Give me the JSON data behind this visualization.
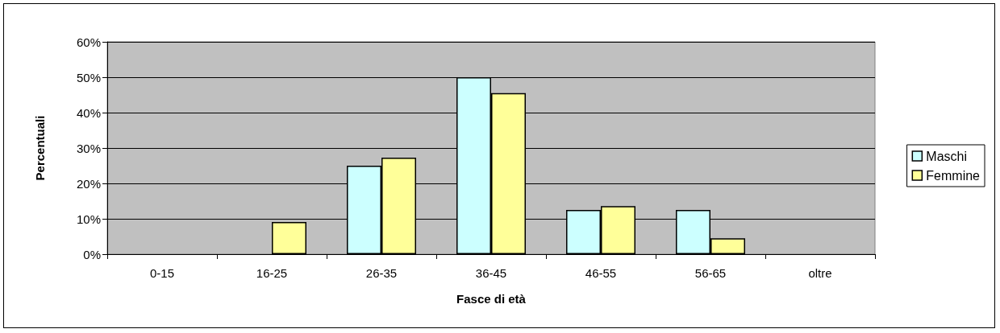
{
  "chart_data": {
    "type": "bar",
    "xlabel": "Fasce di età",
    "ylabel": "Percentuali",
    "categories": [
      "0-15",
      "16-25",
      "26-35",
      "36-45",
      "46-55",
      "56-65",
      "oltre"
    ],
    "series": [
      {
        "name": "Maschi",
        "color": "#ccffff",
        "values": [
          0,
          0,
          25,
          50,
          12.5,
          12.5,
          0
        ]
      },
      {
        "name": "Femmine",
        "color": "#ffff99",
        "values": [
          0,
          9.1,
          27.3,
          45.5,
          13.6,
          4.5,
          0
        ]
      }
    ],
    "ylim": [
      0,
      60
    ],
    "yticks": [
      {
        "value": 0,
        "label": "0%"
      },
      {
        "value": 10,
        "label": "10%"
      },
      {
        "value": 20,
        "label": "20%"
      },
      {
        "value": 30,
        "label": "30%"
      },
      {
        "value": 40,
        "label": "40%"
      },
      {
        "value": 50,
        "label": "50%"
      },
      {
        "value": 60,
        "label": "60%"
      }
    ],
    "grid": "y",
    "legend": "right"
  }
}
